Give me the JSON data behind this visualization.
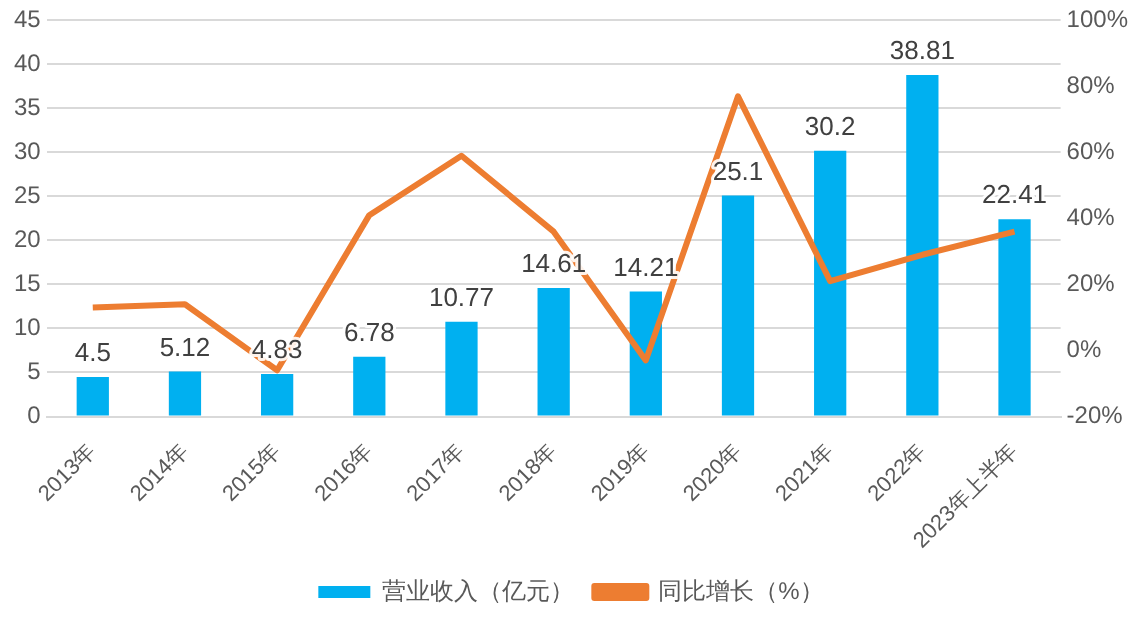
{
  "chart_data": {
    "type": "bar",
    "categories": [
      "2013年",
      "2014年",
      "2015年",
      "2016年",
      "2017年",
      "2018年",
      "2019年",
      "2020年",
      "2021年",
      "2022年",
      "2023年上半年"
    ],
    "series": [
      {
        "name": "营业收入（亿元）",
        "color": "#00b0f0",
        "values": [
          4.5,
          5.12,
          4.83,
          6.78,
          10.77,
          14.61,
          14.21,
          25.1,
          30.2,
          38.81,
          22.41
        ],
        "value_labels": [
          "4.5",
          "5.12",
          "4.83",
          "6.78",
          "10.77",
          "14.61",
          "14.21",
          "25.1",
          "30.2",
          "38.81",
          "22.41"
        ]
      },
      {
        "name": "同比增长（%）",
        "type": "line",
        "axis": "y2",
        "color": "#ed7d31",
        "values": [
          13,
          14,
          -6,
          41,
          59,
          36,
          -3,
          77,
          21,
          29,
          36
        ]
      }
    ],
    "ylim": [
      0,
      45
    ],
    "yticks": [
      0,
      5,
      10,
      15,
      20,
      25,
      30,
      35,
      40,
      45
    ],
    "y2lim": [
      -20,
      100
    ],
    "y2ticks": [
      {
        "value": -20,
        "label": "-20%"
      },
      {
        "value": 0,
        "label": "0%"
      },
      {
        "value": 20,
        "label": "20%"
      },
      {
        "value": 40,
        "label": "40%"
      },
      {
        "value": 60,
        "label": "60%"
      },
      {
        "value": 80,
        "label": "80%"
      },
      {
        "value": 100,
        "label": "100%"
      }
    ],
    "grid": "y",
    "legend": "bottom",
    "marker": "none",
    "line_style": "solid"
  }
}
